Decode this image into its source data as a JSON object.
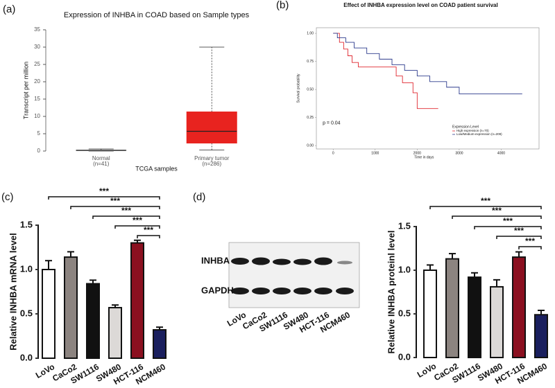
{
  "chart_data": [
    {
      "type": "box",
      "panel": "(a)",
      "title": "Expression of INHBA in COAD based on Sample types",
      "ylabel": "Transcript per million",
      "xlabel": "TCGA samples",
      "categories": [
        "Normal",
        "Primary tumor"
      ],
      "category_notes": [
        "(n=41)",
        "(n=286)"
      ],
      "colors": [
        "#bdbdbd",
        "#e8231f"
      ],
      "boxes": [
        {
          "min": 0,
          "q1": 0.1,
          "median": 0.2,
          "q3": 0.3,
          "max": 0.6
        },
        {
          "min": 0.3,
          "q1": 2.3,
          "median": 5.7,
          "q3": 11.3,
          "max": 30
        }
      ],
      "ylim": [
        0,
        35
      ],
      "yticks": [
        0,
        5,
        10,
        15,
        20,
        25,
        30,
        35
      ]
    },
    {
      "type": "line",
      "panel": "(b)",
      "title": "Effect of INHBA expression level on COAD patient survival",
      "ylabel": "Survival probability",
      "xlabel": "Time in days",
      "annotation": "p = 0.04",
      "legend_title": "Expression Level",
      "legend": "bottom-right",
      "series": [
        {
          "name": "High expression (n=70)",
          "color": "#e0262e",
          "x": [
            0,
            150,
            150,
            250,
            250,
            350,
            350,
            450,
            450,
            600,
            600,
            1500,
            1500,
            1650,
            1650,
            1900,
            1900,
            2000,
            2000,
            2500
          ],
          "values": [
            1,
            1,
            0.92,
            0.92,
            0.86,
            0.86,
            0.8,
            0.8,
            0.74,
            0.74,
            0.7,
            0.7,
            0.62,
            0.62,
            0.56,
            0.56,
            0.47,
            0.47,
            0.33,
            0.33
          ]
        },
        {
          "name": "Low/Medium-expression (n=209)",
          "color": "#2b3a8c",
          "x": [
            0,
            100,
            100,
            300,
            300,
            500,
            500,
            800,
            800,
            1100,
            1100,
            1400,
            1400,
            1700,
            1700,
            2000,
            2000,
            2300,
            2300,
            2700,
            2700,
            3000,
            3000,
            4500
          ],
          "values": [
            1,
            1,
            0.96,
            0.96,
            0.92,
            0.92,
            0.87,
            0.87,
            0.82,
            0.82,
            0.77,
            0.77,
            0.72,
            0.72,
            0.67,
            0.67,
            0.62,
            0.62,
            0.57,
            0.57,
            0.52,
            0.52,
            0.46,
            0.46
          ]
        }
      ],
      "xlim": [
        -400,
        4900
      ],
      "xticks": [
        0,
        1000,
        2000,
        3000,
        4000
      ],
      "ylim": [
        -0.03,
        1.05
      ],
      "yticks": [
        {
          "value": 0,
          "label": "0.00"
        },
        0.25,
        {
          "value": 0.5,
          "label": "0.50"
        },
        0.75,
        {
          "value": 1,
          "label": "1.00"
        }
      ]
    },
    {
      "type": "bar",
      "panel": "(c)",
      "ylabel": "Relative INHBA mRNA level",
      "categories": [
        "LoVo",
        "CaCo2",
        "SW1116",
        "SW480",
        "HCT-116",
        "NCM460"
      ],
      "values": [
        1.0,
        1.14,
        0.84,
        0.57,
        1.3,
        0.32
      ],
      "errors": [
        0.1,
        0.06,
        0.04,
        0.03,
        0.03,
        0.03
      ],
      "colors": [
        "#ffffff",
        "#8c8480",
        "#111111",
        "#dcd9d7",
        "#8b1020",
        "#1a1f5e"
      ],
      "ylim": [
        0,
        1.5
      ],
      "yticks": [
        {
          "value": 0,
          "label": "0.0"
        },
        0.5,
        {
          "value": 1,
          "label": "1.0"
        },
        1.5
      ],
      "brackets": [
        {
          "from": "LoVo",
          "to": "NCM460",
          "label": "***"
        },
        {
          "from": "CaCo2",
          "to": "NCM460",
          "label": "***"
        },
        {
          "from": "SW1116",
          "to": "NCM460",
          "label": "***"
        },
        {
          "from": "SW480",
          "to": "NCM460",
          "label": "***"
        },
        {
          "from": "HCT-116",
          "to": "NCM460",
          "label": "***"
        }
      ]
    },
    {
      "type": "bar",
      "ylabel": "Relative INHBA proteinl level",
      "categories": [
        "LoVo",
        "CaCo2",
        "SW1116",
        "SW480",
        "HCT-116",
        "NCM460"
      ],
      "values": [
        1.0,
        1.13,
        0.92,
        0.81,
        1.15,
        0.49
      ],
      "errors": [
        0.06,
        0.06,
        0.05,
        0.08,
        0.06,
        0.05
      ],
      "colors": [
        "#ffffff",
        "#8c8480",
        "#111111",
        "#dcd9d7",
        "#8b1020",
        "#1a1f5e"
      ],
      "ylim": [
        0,
        1.5
      ],
      "yticks": [
        {
          "value": 0,
          "label": "0.0"
        },
        0.5,
        {
          "value": 1,
          "label": "1.0"
        },
        1.5
      ],
      "brackets": [
        {
          "from": "LoVo",
          "to": "NCM460",
          "label": "***"
        },
        {
          "from": "CaCo2",
          "to": "NCM460",
          "label": "***"
        },
        {
          "from": "SW1116",
          "to": "NCM460",
          "label": "***"
        },
        {
          "from": "SW480",
          "to": "NCM460",
          "label": "***"
        },
        {
          "from": "HCT-116",
          "to": "NCM460",
          "label": "***"
        }
      ]
    }
  ],
  "blot": {
    "panel": "(d)",
    "rows": [
      "INHBA",
      "GAPDH"
    ],
    "lanes": [
      "LoVo",
      "CaCo2",
      "SW1116",
      "SW480",
      "HCT-116",
      "NCM460"
    ]
  }
}
